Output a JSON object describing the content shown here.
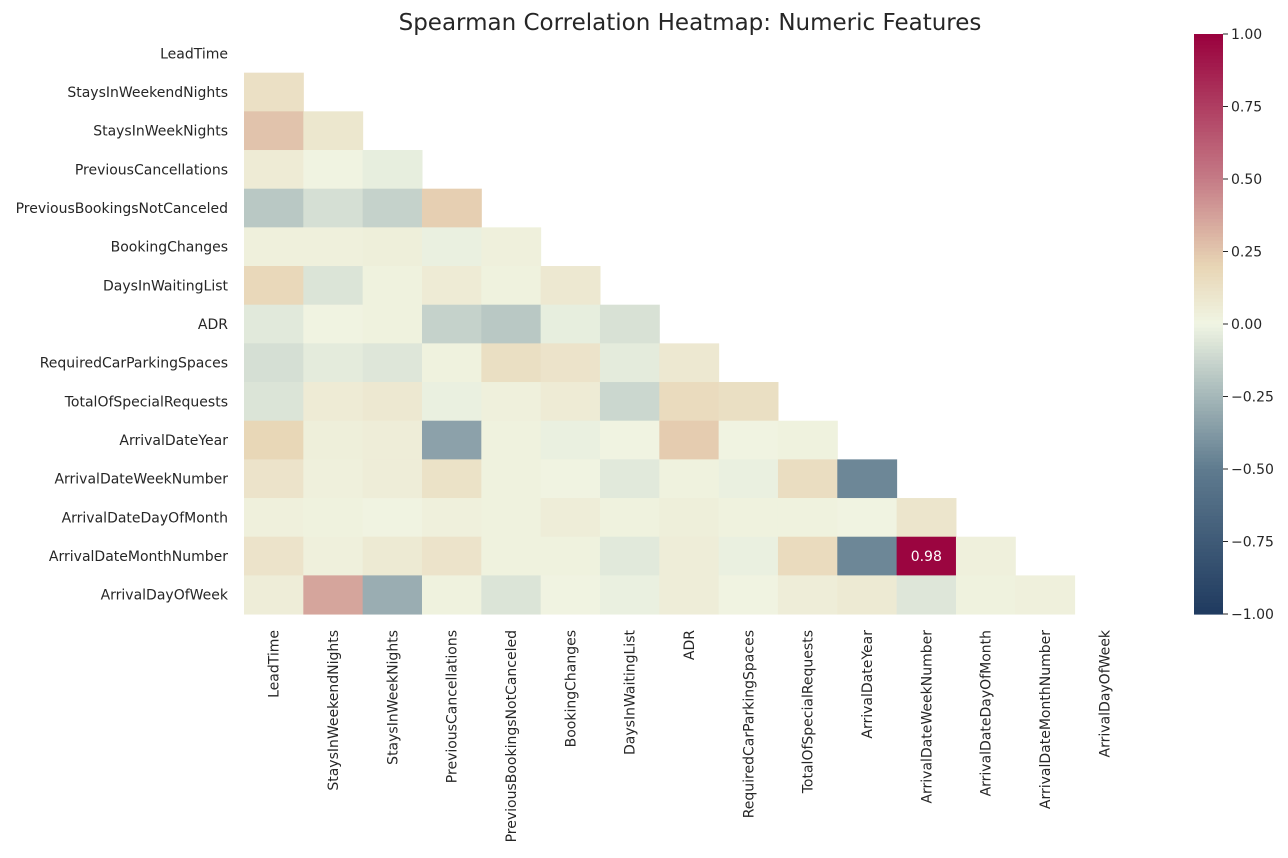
{
  "chart_data": {
    "type": "heatmap",
    "title": "Spearman Correlation Heatmap: Numeric Features",
    "labels": [
      "LeadTime",
      "StaysInWeekendNights",
      "StaysInWeekNights",
      "PreviousCancellations",
      "PreviousBookingsNotCanceled",
      "BookingChanges",
      "DaysInWaitingList",
      "ADR",
      "RequiredCarParkingSpaces",
      "TotalOfSpecialRequests",
      "ArrivalDateYear",
      "ArrivalDateWeekNumber",
      "ArrivalDateDayOfMonth",
      "ArrivalDateMonthNumber",
      "ArrivalDayOfWeek"
    ],
    "mask": "upper-triangle-including-diagonal",
    "values": [
      [],
      [
        0.13
      ],
      [
        0.26,
        0.09
      ],
      [
        0.06,
        0.01,
        -0.03
      ],
      [
        -0.18,
        -0.09,
        -0.14,
        0.22
      ],
      [
        0.03,
        0.03,
        0.04,
        -0.02,
        0.03
      ],
      [
        0.18,
        -0.07,
        0.02,
        0.06,
        0.02,
        0.08
      ],
      [
        -0.05,
        0.01,
        0.02,
        -0.14,
        -0.18,
        -0.03,
        -0.08
      ],
      [
        -0.09,
        -0.04,
        -0.06,
        0.02,
        0.14,
        0.11,
        -0.04,
        0.08
      ],
      [
        -0.07,
        0.06,
        0.08,
        -0.02,
        0.03,
        0.06,
        -0.12,
        0.16,
        0.14
      ],
      [
        0.19,
        0.04,
        0.05,
        -0.34,
        0.02,
        -0.02,
        0.01,
        0.23,
        0.01,
        0.02
      ],
      [
        0.11,
        0.03,
        0.05,
        0.12,
        0.02,
        0.01,
        -0.05,
        0.02,
        -0.02,
        0.15,
        -0.45
      ],
      [
        0.03,
        0.02,
        0.01,
        0.03,
        0.02,
        0.05,
        0.02,
        0.04,
        0.02,
        0.02,
        0.01,
        0.1
      ],
      [
        0.11,
        0.03,
        0.07,
        0.11,
        0.02,
        0.02,
        -0.05,
        0.05,
        -0.02,
        0.16,
        -0.45,
        0.98,
        0.03
      ],
      [
        0.05,
        0.36,
        -0.29,
        0.02,
        -0.07,
        0.01,
        -0.02,
        0.05,
        0.01,
        0.05,
        0.07,
        -0.06,
        0.02,
        0.03
      ]
    ],
    "annotations": [
      {
        "row": 13,
        "col": 11,
        "text": "0.98"
      }
    ],
    "colorbar": {
      "range": [
        -1.0,
        1.0
      ],
      "ticks": [
        "1.00",
        "0.75",
        "0.50",
        "0.25",
        "0.00",
        "−0.25",
        "−0.50",
        "−0.75",
        "−1.00"
      ],
      "tick_values": [
        1.0,
        0.75,
        0.5,
        0.25,
        0.0,
        -0.25,
        -0.5,
        -0.75,
        -1.0
      ],
      "colors": {
        "neg_end": "#1f3a5f",
        "neg_mid": "#5f7b8f",
        "neg_near": "#b3c3c1",
        "center": "#f0f5e3",
        "pos_near": "#e8d5b5",
        "pos_mid": "#c57b86",
        "pos_end": "#99003d"
      }
    }
  }
}
